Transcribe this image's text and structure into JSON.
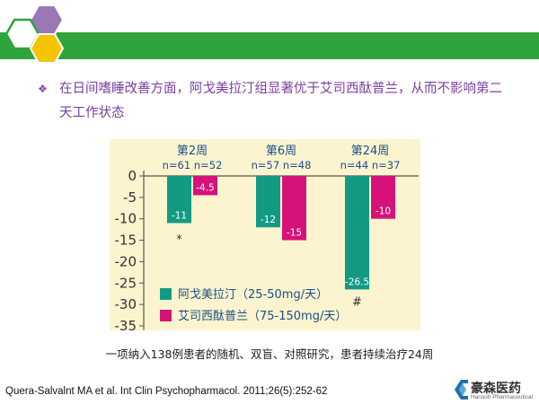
{
  "slide": {
    "bullet_mark": "❖",
    "bullet_text": "在日间嗜睡改善方面，阿戈美拉汀组显著优于艾司西酞普兰，从而不影响第二天工作状态",
    "caption": "一项纳入138例患者的随机、双盲、对照研究，患者持续治疗24周",
    "citation": "Quera-Salvalnt MA  et al. Int Clin Psychopharmacol. 2011;26(5):252-62",
    "logo_text": "豪森医药",
    "logo_sub": "Hansoh Pharmaceutical",
    "colors": {
      "band": "#2fa43a",
      "hex_purple": "#9b77b8",
      "hex_yellow": "#f5c400",
      "hex_white": "#ffffff"
    }
  },
  "chart_data": {
    "type": "bar",
    "categories": [
      "第2周",
      "第6周",
      "第24周"
    ],
    "group_labels": [
      "n=61 n=52",
      "n=57 n=48",
      "n=44 n=37"
    ],
    "series": [
      {
        "name": "阿戈美拉汀（25-50mg/天）",
        "color": "#139a83",
        "values": [
          -11,
          -12,
          -26.5
        ],
        "labels": [
          "-11",
          "-12",
          "-26.5"
        ]
      },
      {
        "name": "艾司西酞普兰（75-150mg/天）",
        "color": "#d6127a",
        "values": [
          -4.5,
          -15,
          -10
        ],
        "labels": [
          "-4.5",
          "-15",
          "-10"
        ]
      }
    ],
    "ylim": [
      -36,
      0
    ],
    "yticks": [
      0,
      -5,
      -10,
      -15,
      -20,
      -25,
      -30,
      -35
    ],
    "annotations": [
      {
        "text": "*",
        "category": 0,
        "value": -14.5
      },
      {
        "text": "#",
        "category": 2,
        "value": -29
      }
    ],
    "legend_position": "bottom-left",
    "grid": false
  }
}
